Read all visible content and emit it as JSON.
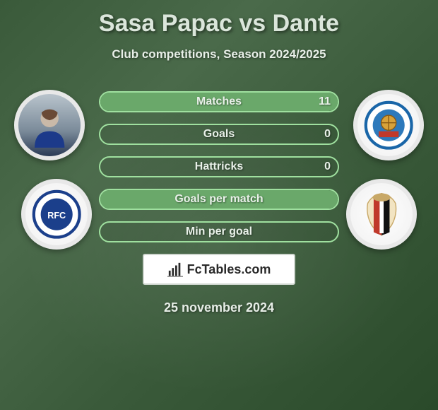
{
  "title": "Sasa Papac vs Dante",
  "subtitle": "Club competitions, Season 2024/2025",
  "date": "25 november 2024",
  "watermark_text": "FcTables.com",
  "bars": [
    {
      "label": "Matches",
      "left": "",
      "right": "11",
      "fill_left_pct": 0,
      "fill_right_pct": 100
    },
    {
      "label": "Goals",
      "left": "",
      "right": "0",
      "fill_left_pct": 0,
      "fill_right_pct": 0
    },
    {
      "label": "Hattricks",
      "left": "",
      "right": "0",
      "fill_left_pct": 0,
      "fill_right_pct": 0
    },
    {
      "label": "Goals per match",
      "left": "",
      "right": "",
      "fill_left_pct": 0,
      "fill_right_pct": 100
    },
    {
      "label": "Min per goal",
      "left": "",
      "right": "",
      "fill_left_pct": 0,
      "fill_right_pct": 0
    }
  ],
  "colors": {
    "bar_border": "#9fe09f",
    "bar_fill": "#6aa86a",
    "title": "#dbe6db",
    "text": "#e8f0e8",
    "watermark_bg": "#ffffff"
  },
  "icons": {
    "player_left": "player-photo",
    "club_left": "rangers-crest",
    "player_right": "leiknir-crest",
    "club_right": "nice-crest",
    "watermark": "bar-chart-icon"
  }
}
